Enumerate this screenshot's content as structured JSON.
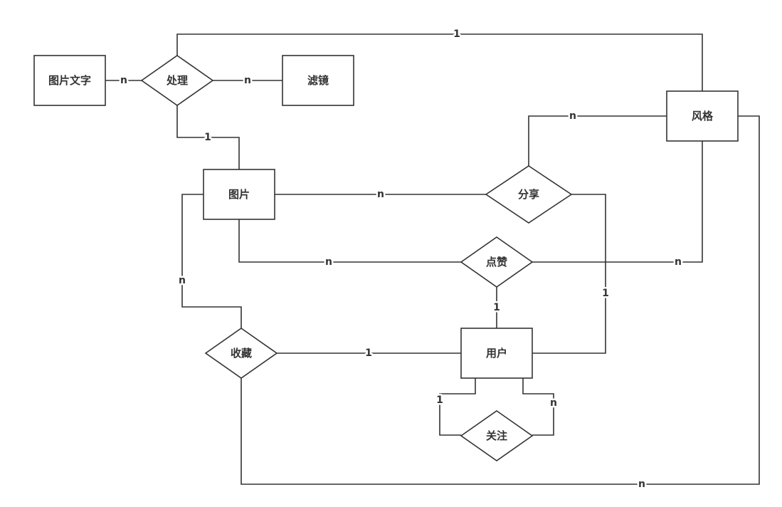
{
  "entities": {
    "image_text": "图片文字",
    "filter": "滤镜",
    "style": "风格",
    "image": "图片",
    "user": "用户"
  },
  "relationships": {
    "process": "处理",
    "share": "分享",
    "like": "点赞",
    "favorite": "收藏",
    "follow": "关注"
  },
  "cardinalities": {
    "process_style": "1",
    "process_image_text": "n",
    "process_filter": "n",
    "process_image": "1",
    "share_style": "n",
    "share_image": "n",
    "share_user": "1",
    "like_image": "n",
    "like_style": "n",
    "like_user": "1",
    "favorite_image": "n",
    "favorite_user": "1",
    "favorite_style": "n",
    "follow_left": "1",
    "follow_right": "n"
  },
  "colors": {
    "stroke": "#333333",
    "fill": "#ffffff",
    "text": "#333333"
  }
}
